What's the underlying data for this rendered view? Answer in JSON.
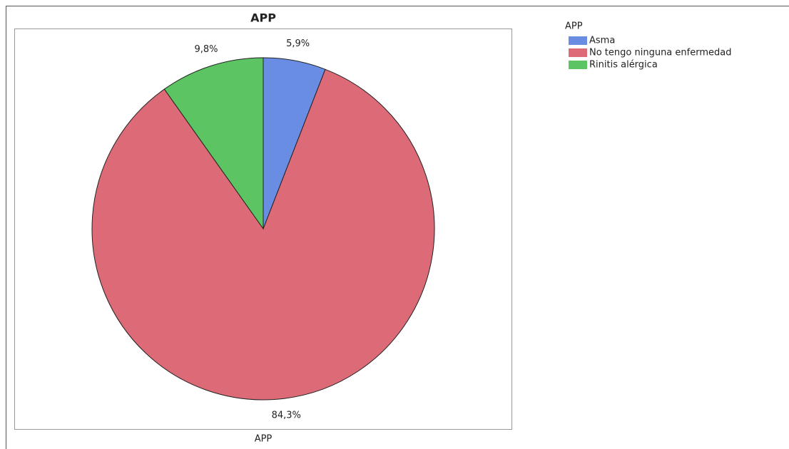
{
  "chart_data": {
    "type": "pie",
    "title": "APP",
    "legend_title": "APP",
    "xlabel": "APP",
    "categories": [
      "Asma",
      "No tengo ninguna enfermedad",
      "Rinitis alérgica"
    ],
    "values": [
      5.9,
      84.3,
      9.8
    ],
    "value_labels": [
      "5,9%",
      "84,3%",
      "9,8%"
    ],
    "colors": [
      "#6a8de4",
      "#dc6b77",
      "#5cc462"
    ],
    "legend": "right"
  }
}
